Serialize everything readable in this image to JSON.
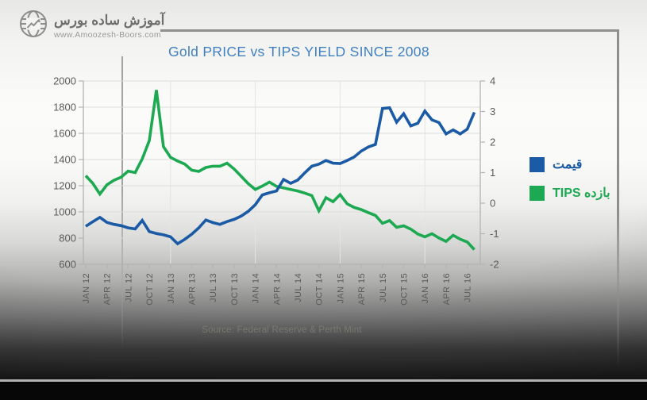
{
  "brand": {
    "name_fa": "آموزش ساده بورس",
    "url": "www.Amoozesh-Boors.com"
  },
  "chart_data": {
    "type": "line",
    "title": "Gold PRICE vs TIPS YIELD SINCE 2008",
    "source": "Source: Federal Reserve & Perth Mint",
    "x_tick_labels": [
      "JAN 12",
      "APR 12",
      "JUL 12",
      "OCT 12",
      "JAN 13",
      "APR 13",
      "JUL 13",
      "OCT 13",
      "JAN 14",
      "APR 14",
      "JUL 14",
      "OCT 14",
      "JAN 15",
      "APR 15",
      "JUL 15",
      "OCT 15",
      "JAN 16",
      "APR 16",
      "JUL 16"
    ],
    "x_frequency": "monthly",
    "left_axis": {
      "ticks": [
        2000,
        1800,
        1600,
        1400,
        1200,
        1000,
        800,
        600
      ],
      "min": 600,
      "max": 2000
    },
    "right_axis": {
      "ticks": [
        4,
        3,
        2,
        1,
        0,
        -1,
        -2
      ],
      "min": -2,
      "max": 4
    },
    "grid": "horizontal",
    "legend_position": "right",
    "series": [
      {
        "name": "قیمت",
        "axis": "left",
        "color": "#1b5aa5",
        "values": [
          890,
          925,
          958,
          920,
          905,
          895,
          878,
          870,
          935,
          850,
          835,
          825,
          810,
          757,
          790,
          830,
          878,
          938,
          918,
          905,
          926,
          943,
          968,
          1004,
          1055,
          1130,
          1146,
          1160,
          1248,
          1218,
          1243,
          1298,
          1349,
          1365,
          1393,
          1372,
          1369,
          1393,
          1420,
          1465,
          1496,
          1515,
          1790,
          1795,
          1685,
          1750,
          1657,
          1677,
          1770,
          1703,
          1682,
          1596,
          1626,
          1596,
          1632,
          1760
        ]
      },
      {
        "name": "بازده TIPS",
        "axis": "right",
        "color": "#1ca951",
        "values": [
          0.9,
          0.65,
          0.3,
          0.6,
          0.75,
          0.85,
          1.05,
          1.0,
          1.45,
          2.05,
          3.7,
          1.85,
          1.5,
          1.38,
          1.28,
          1.08,
          1.04,
          1.17,
          1.21,
          1.21,
          1.31,
          1.12,
          0.88,
          0.64,
          0.45,
          0.56,
          0.69,
          0.55,
          0.5,
          0.45,
          0.4,
          0.33,
          0.25,
          -0.25,
          0.18,
          0.05,
          0.28,
          -0.02,
          -0.14,
          -0.21,
          -0.31,
          -0.4,
          -0.66,
          -0.57,
          -0.79,
          -0.74,
          -0.85,
          -1.01,
          -1.1,
          -1.0,
          -1.14,
          -1.25,
          -1.05,
          -1.18,
          -1.27,
          -1.52
        ]
      }
    ]
  },
  "colors": {
    "title": "#4080c0",
    "axis_text": "#5b5b5b",
    "gridline": "#dcdcdc",
    "axis_line": "#b3b3b3"
  }
}
